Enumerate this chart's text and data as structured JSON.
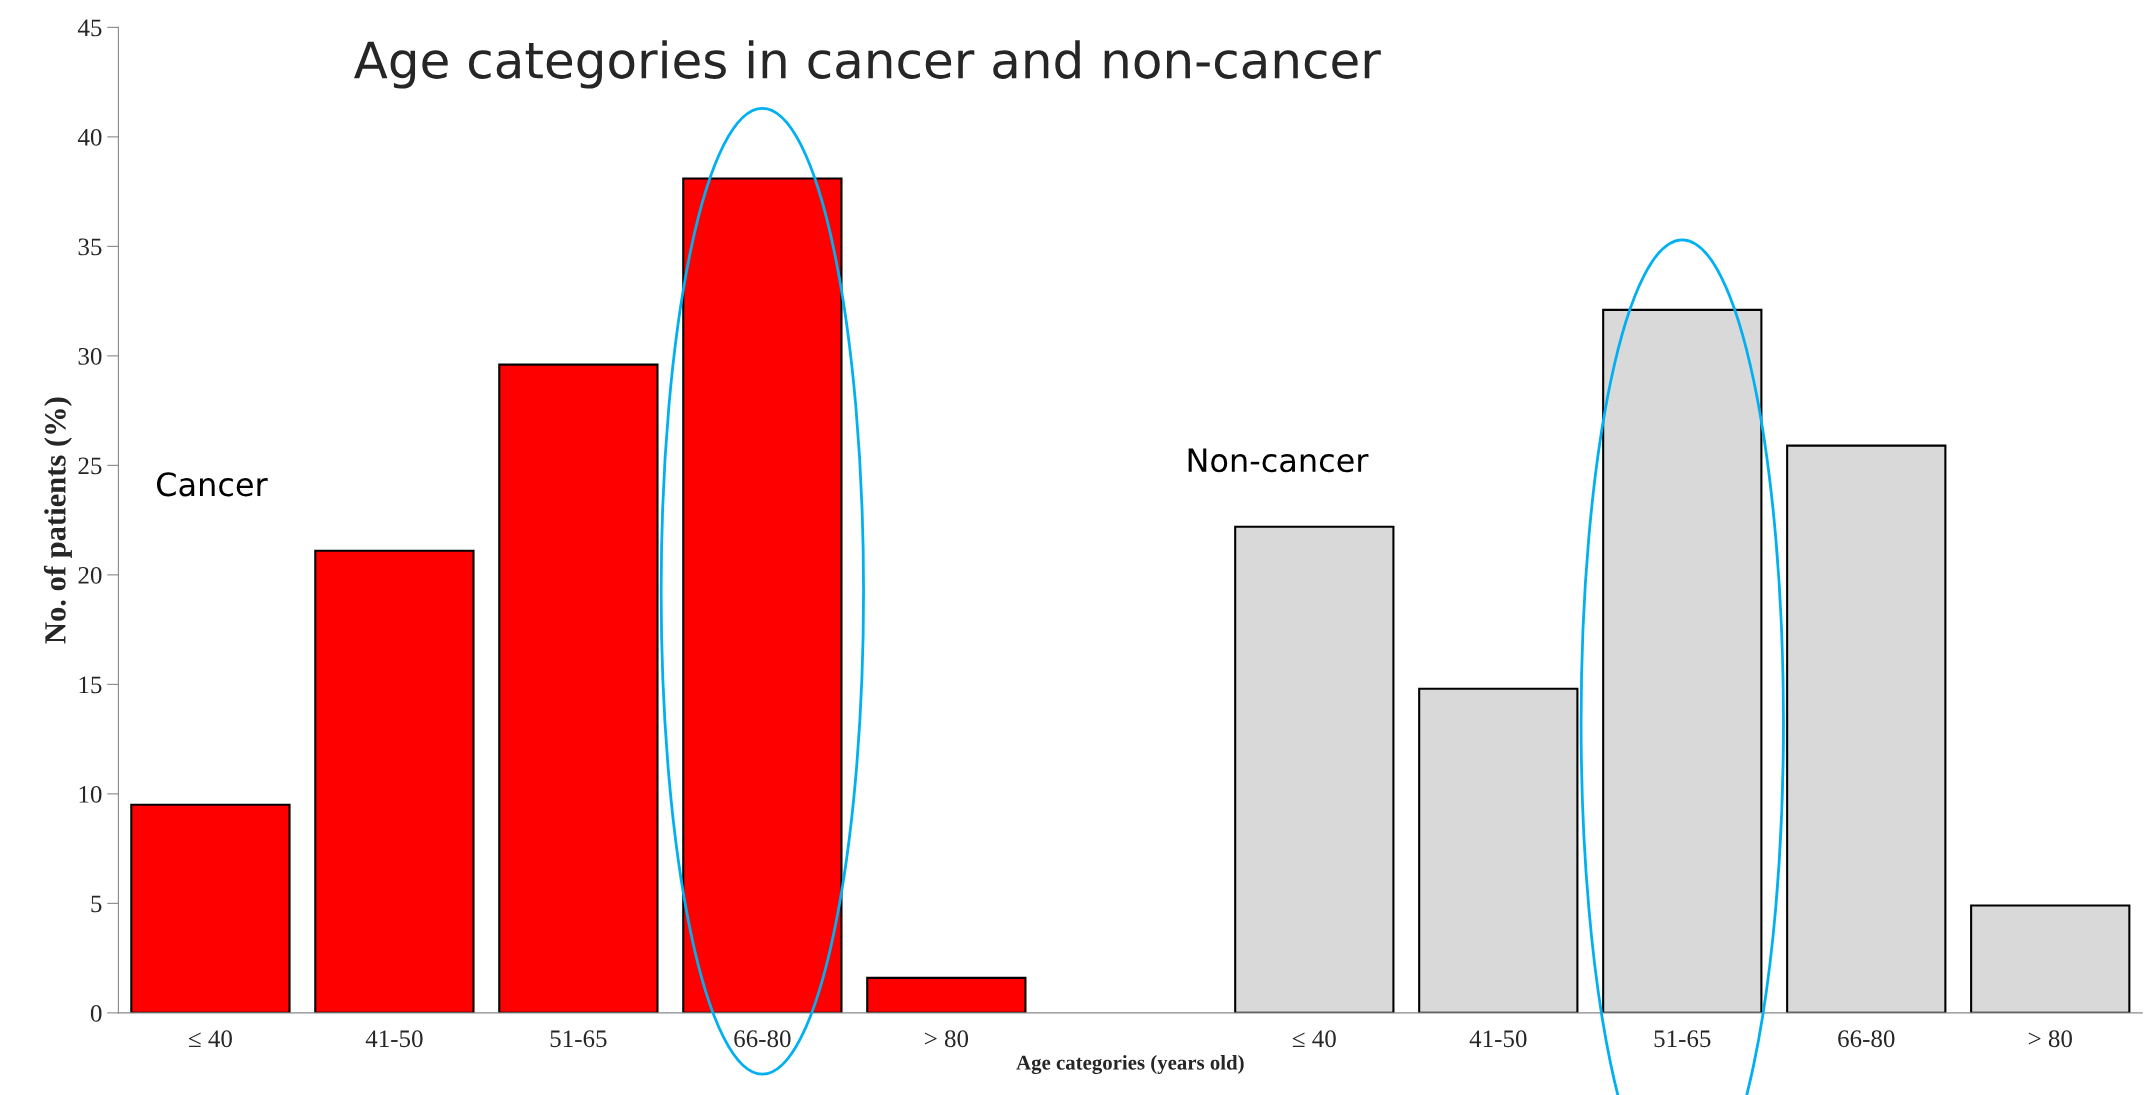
{
  "chart_data": {
    "type": "bar",
    "title": "Age categories in cancer and non-cancer",
    "xlabel": "Age categories (years old)",
    "ylabel": "No. of patients (%)",
    "categories": [
      "≤ 40",
      "41-50",
      "51-65",
      "66-80",
      "> 80",
      null,
      "≤ 40",
      "41-50",
      "51-65",
      "66-80",
      "> 80"
    ],
    "series": [
      {
        "name": "Cancer",
        "color": "#ff0000",
        "values": [
          9.5,
          21.1,
          29.6,
          38.1,
          1.6,
          null,
          null,
          null,
          null,
          null,
          null
        ]
      },
      {
        "name": "Non-cancer",
        "color": "#d9d9d9",
        "values": [
          null,
          null,
          null,
          null,
          null,
          null,
          22.2,
          14.8,
          32.1,
          25.9,
          4.9
        ]
      }
    ],
    "ylim": [
      0,
      45
    ],
    "yticks": [
      0,
      5,
      10,
      15,
      20,
      25,
      30,
      35,
      40,
      45
    ],
    "grid": false,
    "legend": false
  }
}
